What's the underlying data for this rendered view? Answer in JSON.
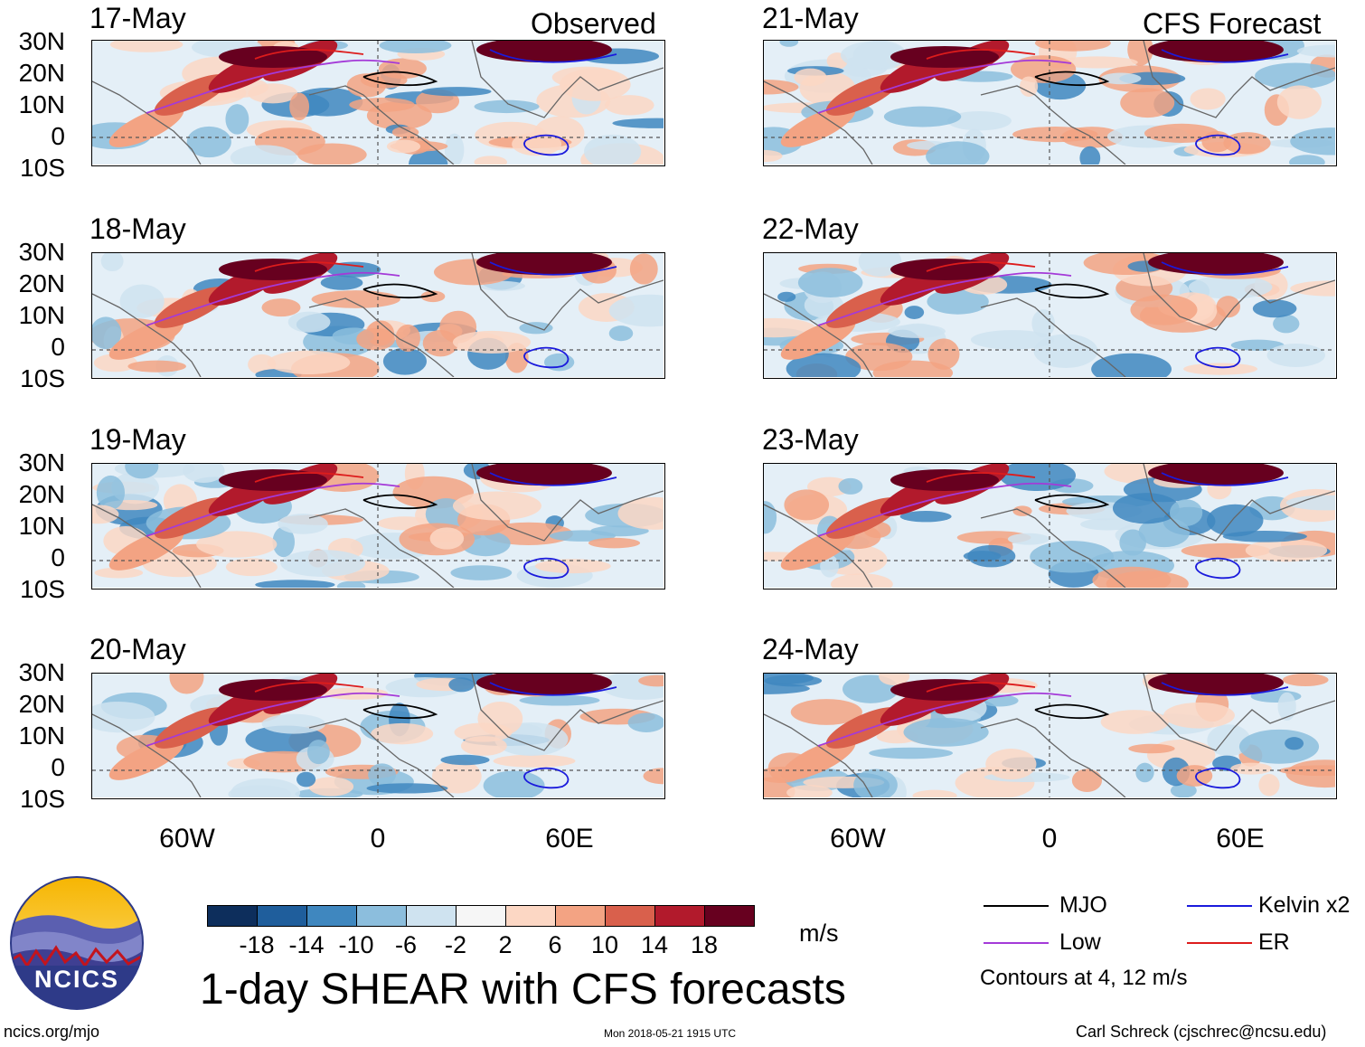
{
  "title": "1-day SHEAR with CFS forecasts",
  "headers": {
    "observed": "Observed",
    "forecast": "CFS Forecast"
  },
  "panels": {
    "observed": [
      "17-May",
      "18-May",
      "19-May",
      "20-May"
    ],
    "forecast": [
      "21-May",
      "22-May",
      "23-May",
      "24-May"
    ]
  },
  "lat_labels": [
    "30N",
    "20N",
    "10N",
    "0",
    "10S"
  ],
  "lon_labels": [
    "60W",
    "0",
    "60E"
  ],
  "colorbar": {
    "unit": "m/s",
    "tick_labels": [
      "-18",
      "-14",
      "-10",
      "-6",
      "-2",
      "2",
      "6",
      "10",
      "14",
      "18"
    ],
    "colors": [
      "#0d2e5c",
      "#1f5e9c",
      "#3f87bf",
      "#8cbedd",
      "#cfe3f0",
      "#f6f6f6",
      "#fcd7c4",
      "#f3a383",
      "#d9604c",
      "#b21a2c",
      "#67001f"
    ]
  },
  "legend": {
    "items": [
      {
        "label": "MJO",
        "color": "#000000"
      },
      {
        "label": "Kelvin x2",
        "color": "#1a1adc"
      },
      {
        "label": "Low",
        "color": "#a43ad8"
      },
      {
        "label": "ER",
        "color": "#dd1c1c"
      }
    ],
    "note": "Contours at 4, 12 m/s"
  },
  "logo_text": "NCICS",
  "footer": {
    "left": "ncics.org/mjo",
    "center": "Mon 2018-05-21 1915 UTC",
    "right": "Carl Schreck (cjschrec@ncsu.edu)"
  }
}
